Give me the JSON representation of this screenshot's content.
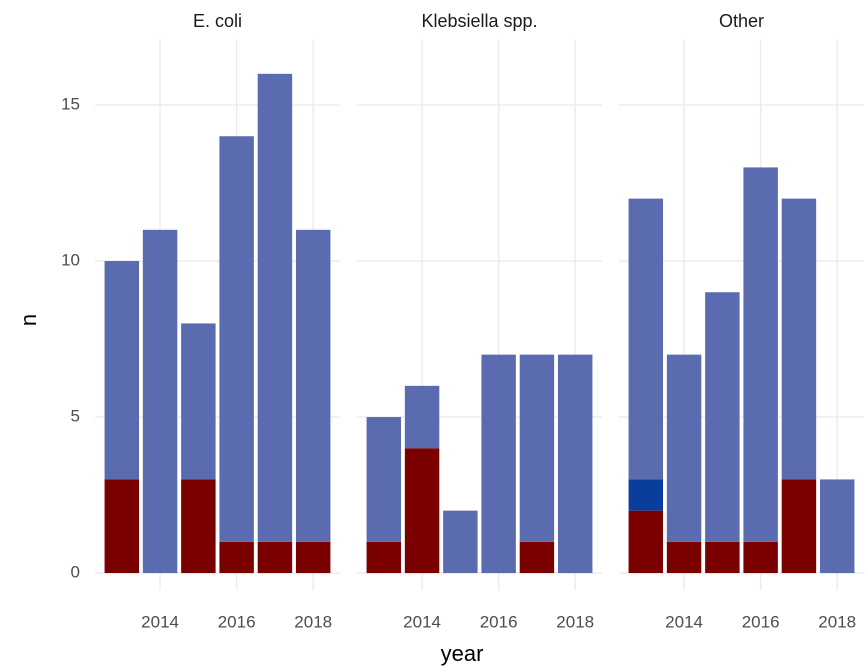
{
  "chart_data": {
    "type": "bar",
    "stacked": true,
    "xlabel": "year",
    "ylabel": "n",
    "x": [
      2013,
      2014,
      2015,
      2016,
      2017,
      2018
    ],
    "xlim": [
      2012.3,
      2018.7
    ],
    "xticks": [
      2014,
      2016,
      2018
    ],
    "ylim": [
      -0.55,
      17.1
    ],
    "yticks": [
      0,
      5,
      10,
      15
    ],
    "grid": true,
    "facets": [
      {
        "title": "E. coli",
        "series": [
          {
            "color": "#7b0000",
            "values": [
              3,
              0,
              3,
              1,
              1,
              1
            ]
          },
          {
            "color": "#0a3d9c",
            "values": [
              0,
              0,
              0,
              0,
              0,
              0
            ]
          },
          {
            "color": "#5b6bb0",
            "values": [
              7,
              11,
              5,
              13,
              15,
              10
            ]
          }
        ]
      },
      {
        "title": "Klebsiella spp.",
        "series": [
          {
            "color": "#7b0000",
            "values": [
              1,
              4,
              0,
              0,
              1,
              0
            ]
          },
          {
            "color": "#0a3d9c",
            "values": [
              0,
              0,
              0,
              0,
              0,
              0
            ]
          },
          {
            "color": "#5b6bb0",
            "values": [
              4,
              2,
              2,
              7,
              6,
              7
            ]
          }
        ]
      },
      {
        "title": "Other",
        "series": [
          {
            "color": "#7b0000",
            "values": [
              2,
              1,
              1,
              1,
              3,
              0
            ]
          },
          {
            "color": "#0a3d9c",
            "values": [
              1,
              0,
              0,
              0,
              0,
              0
            ]
          },
          {
            "color": "#5b6bb0",
            "values": [
              9,
              6,
              8,
              12,
              9,
              3
            ]
          }
        ]
      }
    ]
  }
}
